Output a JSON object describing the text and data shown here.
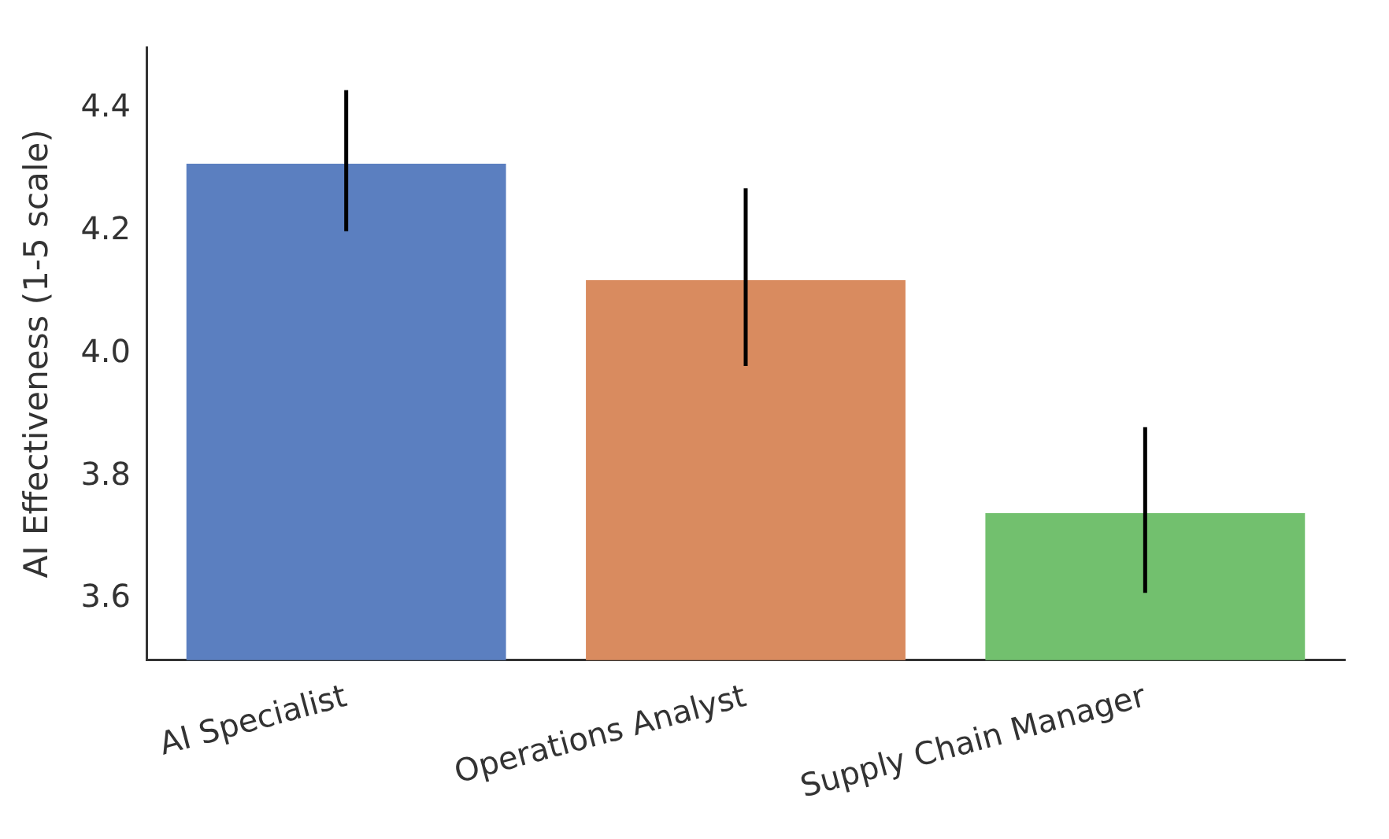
{
  "chart_data": {
    "type": "bar",
    "ylabel": "AI Effectiveness (1-5 scale)",
    "categories": [
      "AI Specialist",
      "Operations Analyst",
      "Supply Chain Manager"
    ],
    "values": [
      4.31,
      4.12,
      3.74
    ],
    "colors": [
      "#5b7fc0",
      "#d98b5f",
      "#72c06e"
    ],
    "errors": [
      [
        4.2,
        4.43
      ],
      [
        3.98,
        4.27
      ],
      [
        3.61,
        3.88
      ]
    ],
    "ylim": [
      3.5,
      4.5
    ],
    "yticks": [
      3.6,
      3.8,
      {
        "value": 4,
        "label": "4.0"
      },
      4.2,
      4.4
    ],
    "grid": false
  }
}
